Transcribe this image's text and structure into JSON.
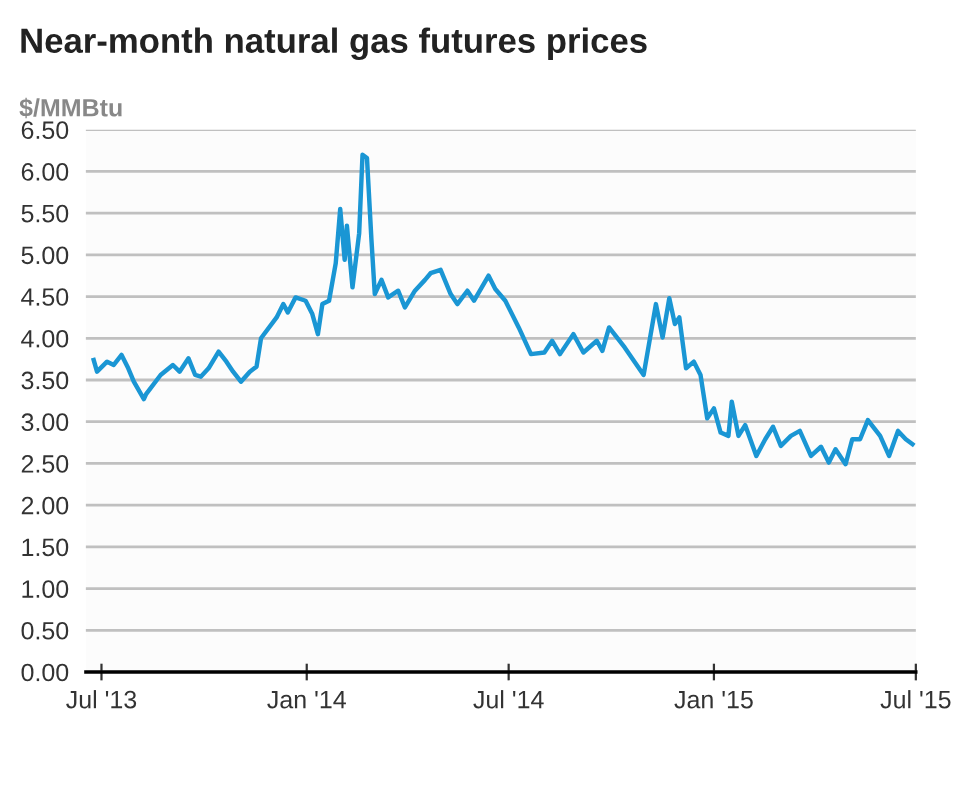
{
  "chart_data": {
    "type": "line",
    "title": "Near-month natural gas futures prices",
    "ylabel": "$/MMBtu",
    "x": [
      "2013-06-24",
      "2013-06-27",
      "2013-07-06",
      "2013-07-12",
      "2013-07-19",
      "2013-07-25",
      "2013-07-30",
      "2013-08-08",
      "2013-08-10",
      "2013-08-23",
      "2013-09-03",
      "2013-09-09",
      "2013-09-17",
      "2013-09-23",
      "2013-09-28",
      "2013-10-05",
      "2013-10-14",
      "2013-10-21",
      "2013-10-27",
      "2013-11-03",
      "2013-11-11",
      "2013-11-17",
      "2013-11-21",
      "2013-12-05",
      "2013-12-11",
      "2013-12-15",
      "2013-12-22",
      "2013-12-31",
      "2014-01-06",
      "2014-01-11",
      "2014-01-15",
      "2014-01-21",
      "2014-01-27",
      "2014-01-31",
      "2014-02-04",
      "2014-02-06",
      "2014-02-11",
      "2014-02-17",
      "2014-02-20",
      "2014-02-24",
      "2014-02-28",
      "2014-03-03",
      "2014-03-09",
      "2014-03-15",
      "2014-03-24",
      "2014-03-30",
      "2014-04-08",
      "2014-04-17",
      "2014-04-22",
      "2014-05-01",
      "2014-05-10",
      "2014-05-16",
      "2014-05-25",
      "2014-05-31",
      "2014-06-13",
      "2014-06-19",
      "2014-06-28",
      "2014-07-10",
      "2014-07-21",
      "2014-08-02",
      "2014-08-09",
      "2014-08-16",
      "2014-08-28",
      "2014-09-06",
      "2014-09-18",
      "2014-09-23",
      "2014-09-29",
      "2014-10-13",
      "2014-10-30",
      "2014-11-10",
      "2014-11-16",
      "2014-11-22",
      "2014-11-27",
      "2014-12-01",
      "2014-12-07",
      "2014-12-14",
      "2014-12-20",
      "2014-12-26",
      "2015-01-01",
      "2015-01-07",
      "2015-01-14",
      "2015-01-17",
      "2015-01-23",
      "2015-01-29",
      "2015-02-08",
      "2015-02-16",
      "2015-02-23",
      "2015-03-02",
      "2015-03-11",
      "2015-03-19",
      "2015-03-29",
      "2015-04-07",
      "2015-04-14",
      "2015-04-20",
      "2015-04-29",
      "2015-05-05",
      "2015-05-12",
      "2015-05-19",
      "2015-05-30",
      "2015-06-07",
      "2015-06-15",
      "2015-06-22",
      "2015-06-28"
    ],
    "series": [
      {
        "color": "#1a96d4",
        "values": [
          3.74,
          3.6,
          3.72,
          3.68,
          3.8,
          3.64,
          3.48,
          3.27,
          3.33,
          3.56,
          3.68,
          3.6,
          3.76,
          3.56,
          3.54,
          3.64,
          3.84,
          3.72,
          3.6,
          3.48,
          3.6,
          3.66,
          4.0,
          4.25,
          4.41,
          4.31,
          4.49,
          4.45,
          4.29,
          4.05,
          4.41,
          4.45,
          4.9,
          5.55,
          4.94,
          5.35,
          4.61,
          5.26,
          6.2,
          6.16,
          5.18,
          4.53,
          4.7,
          4.49,
          4.57,
          4.37,
          4.57,
          4.7,
          4.78,
          4.82,
          4.53,
          4.41,
          4.57,
          4.45,
          4.75,
          4.59,
          4.45,
          4.13,
          3.81,
          3.83,
          3.97,
          3.81,
          4.05,
          3.83,
          3.97,
          3.85,
          4.13,
          3.89,
          3.56,
          4.41,
          4.01,
          4.48,
          4.17,
          4.25,
          3.64,
          3.72,
          3.56,
          3.04,
          3.16,
          2.87,
          2.83,
          3.24,
          2.83,
          2.96,
          2.59,
          2.79,
          2.94,
          2.71,
          2.83,
          2.89,
          2.59,
          2.7,
          2.51,
          2.67,
          2.49,
          2.79,
          2.79,
          3.02,
          2.83,
          2.59,
          2.89,
          2.79,
          2.73
        ]
      }
    ],
    "xlim": [
      "2013-06-17",
      "2015-07-01"
    ],
    "xticks": [
      {
        "value": "2013-07-01",
        "label": "Jul '13"
      },
      {
        "value": "2014-01-01",
        "label": "Jan '14"
      },
      {
        "value": "2014-07-01",
        "label": "Jul '14"
      },
      {
        "value": "2015-01-01",
        "label": "Jan '15"
      },
      {
        "value": "2015-07-01",
        "label": "Jul '15"
      }
    ],
    "ylim": [
      0,
      6.5
    ],
    "yticks": [
      {
        "value": 0,
        "label": "0.00"
      },
      {
        "value": 0.5,
        "label": "0.50"
      },
      {
        "value": 1,
        "label": "1.00"
      },
      {
        "value": 1.5,
        "label": "1.50"
      },
      {
        "value": 2,
        "label": "2.00"
      },
      {
        "value": 2.5,
        "label": "2.50"
      },
      {
        "value": 3,
        "label": "3.00"
      },
      {
        "value": 3.5,
        "label": "3.50"
      },
      {
        "value": 4,
        "label": "4.00"
      },
      {
        "value": 4.5,
        "label": "4.50"
      },
      {
        "value": 5,
        "label": "5.00"
      },
      {
        "value": 5.5,
        "label": "5.50"
      },
      {
        "value": 6,
        "label": "6.00"
      },
      {
        "value": 6.5,
        "label": "6.50"
      }
    ],
    "grid": "y",
    "marker": "none",
    "line_style": "solid"
  }
}
